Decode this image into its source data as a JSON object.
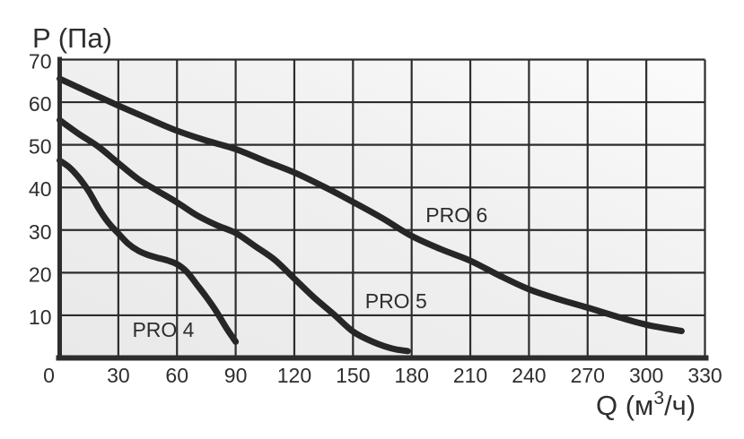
{
  "chart_data": {
    "type": "line",
    "title": "",
    "xlabel": "Q (м³/ч)",
    "xlabel_parts": {
      "prefix": "Q (м",
      "sup": "3",
      "suffix": "/ч)"
    },
    "ylabel": "P (Па)",
    "xlim": [
      0,
      330
    ],
    "ylim": [
      0,
      70
    ],
    "x_ticks": [
      0,
      30,
      60,
      90,
      120,
      150,
      180,
      210,
      240,
      270,
      300,
      330
    ],
    "y_ticks": [
      10,
      20,
      30,
      40,
      50,
      60,
      70
    ],
    "grid": true,
    "legend_position": "inline-curve-labels",
    "series": [
      {
        "name": "PRO 4",
        "label_at": {
          "q": 53,
          "p": 6.6
        },
        "points": [
          [
            0,
            46.3
          ],
          [
            5,
            44.7
          ],
          [
            10,
            42.2
          ],
          [
            15,
            39.0
          ],
          [
            20,
            35.0
          ],
          [
            25,
            31.7
          ],
          [
            30,
            29.2
          ],
          [
            35,
            26.8
          ],
          [
            40,
            25.2
          ],
          [
            45,
            24.2
          ],
          [
            50,
            23.5
          ],
          [
            55,
            22.9
          ],
          [
            60,
            22.0
          ],
          [
            65,
            20.2
          ],
          [
            70,
            17.3
          ],
          [
            75,
            14.3
          ],
          [
            80,
            11.0
          ],
          [
            85,
            7.2
          ],
          [
            90,
            3.8
          ]
        ]
      },
      {
        "name": "PRO 5",
        "label_at": {
          "q": 172,
          "p": 13.3
        },
        "points": [
          [
            0,
            55.8
          ],
          [
            10,
            52.5
          ],
          [
            20,
            49.5
          ],
          [
            30,
            45.7
          ],
          [
            40,
            42.0
          ],
          [
            50,
            39.2
          ],
          [
            60,
            36.5
          ],
          [
            70,
            33.5
          ],
          [
            80,
            31.2
          ],
          [
            90,
            29.3
          ],
          [
            100,
            26.2
          ],
          [
            110,
            23.0
          ],
          [
            120,
            18.6
          ],
          [
            130,
            14.2
          ],
          [
            140,
            10.3
          ],
          [
            150,
            6.2
          ],
          [
            160,
            3.8
          ],
          [
            170,
            2.2
          ],
          [
            178,
            1.6
          ]
        ]
      },
      {
        "name": "PRO 6",
        "label_at": {
          "q": 203,
          "p": 33.5
        },
        "points": [
          [
            0,
            65.5
          ],
          [
            15,
            62.3
          ],
          [
            30,
            59.2
          ],
          [
            45,
            56.2
          ],
          [
            60,
            53.3
          ],
          [
            75,
            51.0
          ],
          [
            90,
            49.0
          ],
          [
            105,
            46.2
          ],
          [
            120,
            43.5
          ],
          [
            135,
            40.2
          ],
          [
            150,
            36.6
          ],
          [
            165,
            32.8
          ],
          [
            180,
            28.6
          ],
          [
            195,
            25.5
          ],
          [
            210,
            22.8
          ],
          [
            225,
            19.3
          ],
          [
            240,
            16.1
          ],
          [
            255,
            13.8
          ],
          [
            270,
            11.8
          ],
          [
            285,
            9.7
          ],
          [
            300,
            7.8
          ],
          [
            318,
            6.3
          ]
        ]
      }
    ],
    "colors": {
      "curve": "#262626",
      "grid": "#2d2d2d",
      "axis": "#2d2d2d",
      "text": "#2e2e2e",
      "plot_bg_from": "#e9e9e9",
      "plot_bg_mid": "#f0f0f0",
      "plot_bg_to": "#fbfbfb",
      "page_bg": "#ffffff"
    }
  }
}
